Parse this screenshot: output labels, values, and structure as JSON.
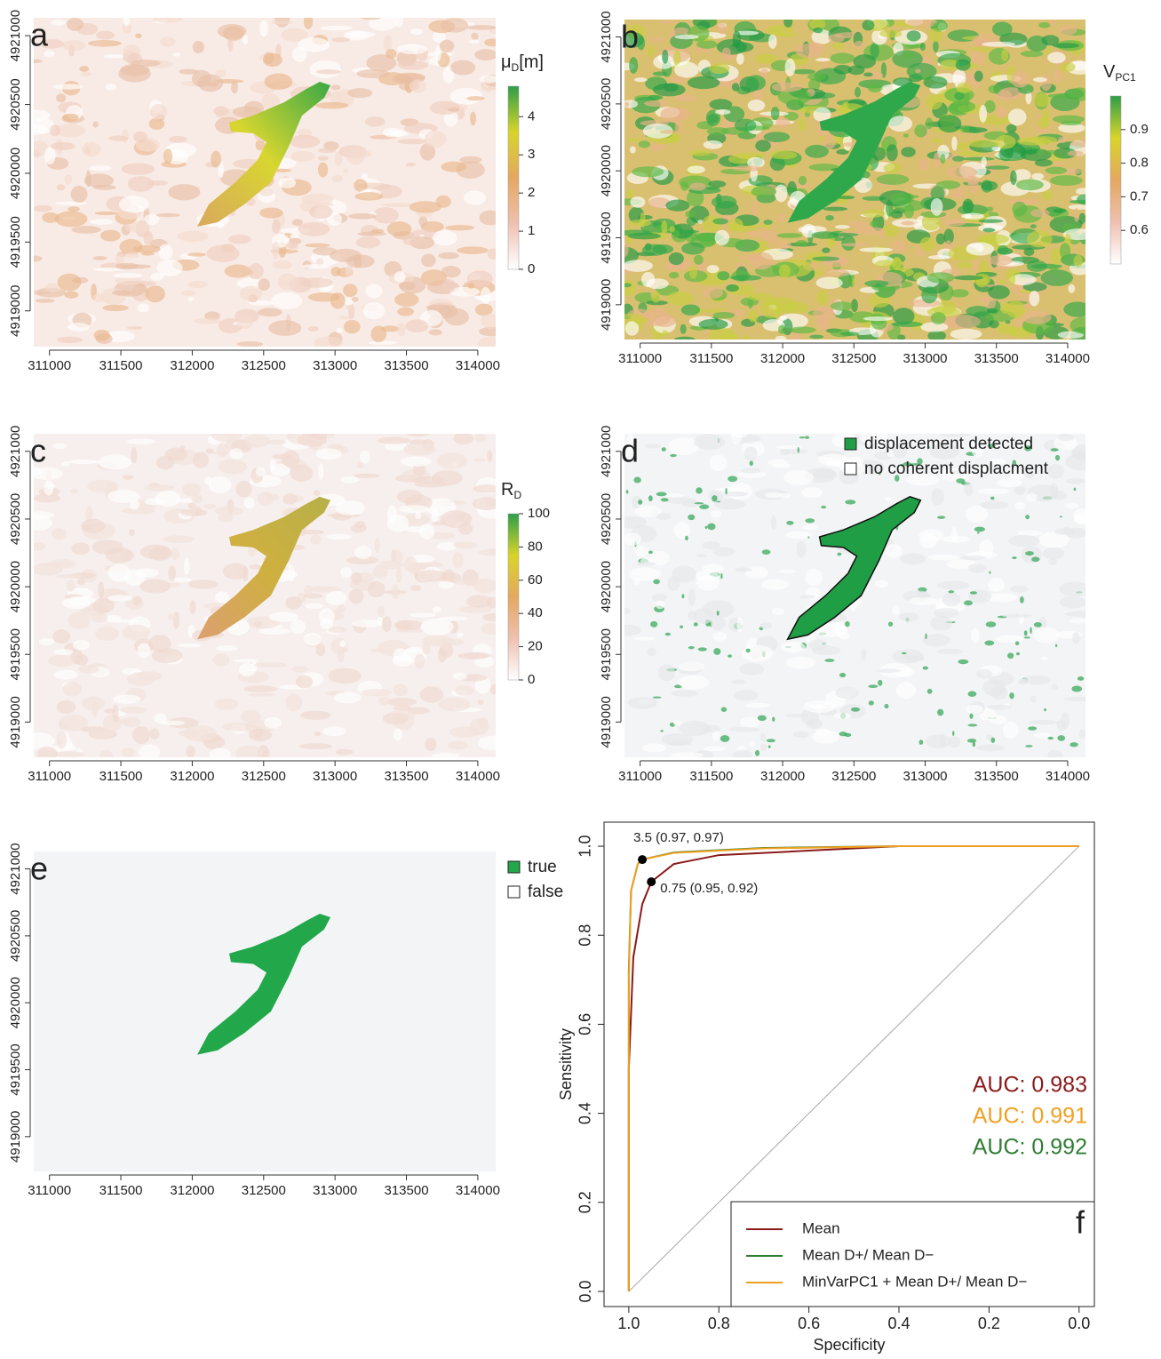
{
  "chart_data": [
    {
      "type": "map",
      "panel": "a",
      "xlim": [
        310890,
        314125
      ],
      "ylim": [
        4918740,
        4921130
      ],
      "xticks": [
        311000,
        311500,
        312000,
        312500,
        313000,
        313500,
        314000
      ],
      "yticks": [
        4919000,
        4919500,
        4920000,
        4920500,
        4921000
      ],
      "background": "#f8ebe5",
      "texture": [
        "#f0cfc0",
        "#f4dbd0",
        "#e9b98e",
        "#ffffff",
        "#e8c0a8"
      ],
      "feature_colors": [
        "#d9a860",
        "#d8d630",
        "#3aa845"
      ],
      "colorbar": {
        "title": "μ",
        "title_sub": "D",
        "title_suffix": "[m]",
        "lim": [
          0,
          4.8
        ],
        "ticks": [
          0,
          1,
          2,
          3,
          4
        ],
        "colors": [
          "#ffffff",
          "#efc0b0",
          "#e3a860",
          "#d9d42a",
          "#2e9e48"
        ]
      }
    },
    {
      "type": "map",
      "panel": "b",
      "xlim": [
        310890,
        314125
      ],
      "ylim": [
        4918740,
        4921130
      ],
      "xticks": [
        311000,
        311500,
        312000,
        312500,
        313000,
        313500,
        314000
      ],
      "yticks": [
        4919000,
        4919500,
        4920000,
        4920500,
        4921000
      ],
      "background": "#d9c070",
      "texture": [
        "#2ea84a",
        "#5bb844",
        "#ffffff",
        "#e8b48a",
        "#c8d040",
        "#1e9a44"
      ],
      "feature_colors": [
        "#2ea84a",
        "#2ea84a"
      ],
      "colorbar": {
        "title": "V",
        "title_sub": "PC1",
        "title_suffix": "",
        "lim": [
          0.5,
          1.0
        ],
        "ticks": [
          0.6,
          0.7,
          0.8,
          0.9
        ],
        "colors": [
          "#ffffff",
          "#efc0b0",
          "#e3a860",
          "#d9d42a",
          "#2e9e48"
        ]
      }
    },
    {
      "type": "map",
      "panel": "c",
      "xlim": [
        310890,
        314125
      ],
      "ylim": [
        4918740,
        4921130
      ],
      "xticks": [
        311000,
        311500,
        312000,
        312500,
        313000,
        313500,
        314000
      ],
      "yticks": [
        4919000,
        4919500,
        4920000,
        4920500,
        4921000
      ],
      "background": "#f6efed",
      "texture": [
        "#f3e2dc",
        "#ffffff",
        "#efd8cf"
      ],
      "feature_colors": [
        "#dca070",
        "#cfb040",
        "#b6b048"
      ],
      "colorbar": {
        "title": "R",
        "title_sub": "D",
        "title_suffix": "",
        "lim": [
          0,
          100
        ],
        "ticks": [
          0,
          20,
          40,
          60,
          80,
          100
        ],
        "colors": [
          "#ffffff",
          "#efc0b0",
          "#e3a860",
          "#d9d42a",
          "#2e9e48"
        ]
      }
    },
    {
      "type": "map",
      "panel": "d",
      "xlim": [
        310890,
        314125
      ],
      "ylim": [
        4918740,
        4921130
      ],
      "xticks": [
        311000,
        311500,
        312000,
        312500,
        313000,
        313500,
        314000
      ],
      "yticks": [
        4919000,
        4919500,
        4920000,
        4920500,
        4921000
      ],
      "background": "#f3f4f5",
      "texture": [
        "#1f9e45",
        "#e6e8ea",
        "#ffffff"
      ],
      "feature_colors": [
        "#1f9e45",
        "#1f9e45"
      ],
      "outline": true,
      "legend": [
        {
          "label": "displacement detected",
          "color": "#1f9e45"
        },
        {
          "label": "no coherent displacment",
          "color": "#ffffff"
        }
      ]
    },
    {
      "type": "map",
      "panel": "e",
      "xlim": [
        310890,
        314125
      ],
      "ylim": [
        4918740,
        4921130
      ],
      "xticks": [
        311000,
        311500,
        312000,
        312500,
        313000,
        313500,
        314000
      ],
      "yticks": [
        4919000,
        4919500,
        4920000,
        4920500,
        4921000
      ],
      "background": "#f3f4f6",
      "texture": [],
      "feature_colors": [
        "#22a84a",
        "#22a84a"
      ],
      "legend": [
        {
          "label": "true",
          "color": "#22a84a"
        },
        {
          "label": "false",
          "color": "#ffffff"
        }
      ]
    },
    {
      "type": "roc",
      "panel": "f",
      "xlabel": "Specificity",
      "ylabel": "Sensitivity",
      "xlim": [
        1.055,
        -0.034
      ],
      "ylim": [
        -0.034,
        1.054
      ],
      "xticks": [
        {
          "value": 1,
          "label": "1.0"
        },
        0.8,
        0.6,
        0.4,
        0.2,
        {
          "value": 0,
          "label": "0.0"
        }
      ],
      "yticks": [
        {
          "value": 0,
          "label": "0.0"
        },
        0.2,
        0.4,
        0.6,
        0.8,
        {
          "value": 1,
          "label": "1.0"
        }
      ],
      "series": [
        {
          "name": "Mean",
          "color": "#8b1a1a",
          "x": [
            1,
            1,
            0.99,
            0.97,
            0.95,
            0.9,
            0.8,
            0.6,
            0.4,
            0
          ],
          "values": [
            0,
            0.5,
            0.75,
            0.87,
            0.92,
            0.96,
            0.98,
            0.99,
            1,
            1
          ]
        },
        {
          "name": "Mean D+/ Mean D−",
          "color": "#2e7d32",
          "x": [
            1,
            1,
            0.995,
            0.98,
            0.97,
            0.9,
            0.7,
            0.4,
            0
          ],
          "values": [
            0,
            0.72,
            0.9,
            0.96,
            0.97,
            0.986,
            0.996,
            1,
            1
          ]
        },
        {
          "name": "MinVarPC1 + Mean D+/ Mean D−",
          "color": "#f0a020",
          "x": [
            1,
            1,
            0.995,
            0.98,
            0.97,
            0.9,
            0.7,
            0.4,
            0
          ],
          "values": [
            0,
            0.7,
            0.9,
            0.96,
            0.97,
            0.985,
            0.995,
            1,
            1
          ]
        }
      ],
      "annotations": [
        {
          "x": 0.97,
          "y": 0.97,
          "label": "3.5 (0.97, 0.97)"
        },
        {
          "x": 0.95,
          "y": 0.92,
          "label": "0.75 (0.95, 0.92)"
        }
      ],
      "auc_labels": [
        {
          "label": "AUC: 0.983",
          "color": "#8b1a1a"
        },
        {
          "label": "AUC: 0.991",
          "color": "#f0a020"
        },
        {
          "label": "AUC: 0.992",
          "color": "#2e7d32"
        }
      ],
      "legend": "bottom-right"
    }
  ]
}
